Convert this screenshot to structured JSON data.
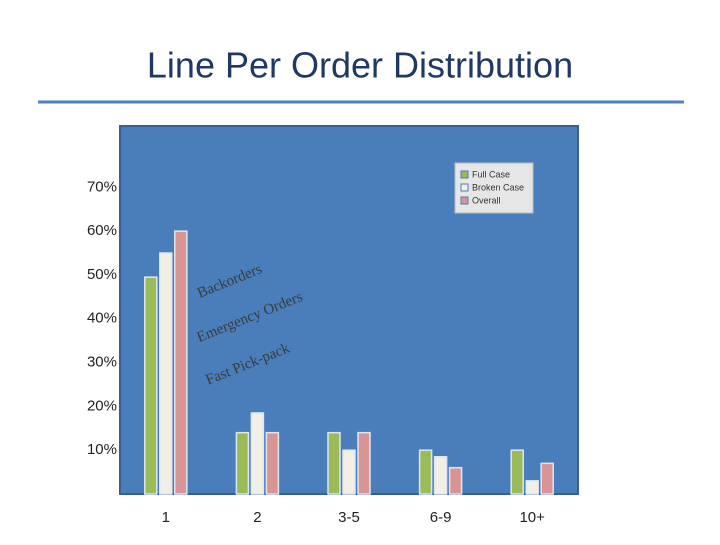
{
  "chart_data": {
    "type": "bar",
    "title": "Line Per Order Distribution",
    "categories": [
      "1",
      "2",
      "3-5",
      "6-9",
      "10+"
    ],
    "series": [
      {
        "name": "Full Case",
        "color": "#9bbb59",
        "values": [
          49.5,
          14,
          14,
          10,
          10
        ]
      },
      {
        "name": "Broken Case",
        "color": "#f2f0e6",
        "values": [
          55,
          18.5,
          10,
          8.5,
          3
        ]
      },
      {
        "name": "Overall",
        "color": "#d99594",
        "values": [
          60,
          14,
          14,
          6,
          7
        ]
      }
    ],
    "ylim": [
      0,
      84
    ],
    "yticks": [
      {
        "value": 10,
        "label": "10%"
      },
      {
        "value": 20,
        "label": "20%"
      },
      {
        "value": 30,
        "label": "30%"
      },
      {
        "value": 40,
        "label": "40%"
      },
      {
        "value": 50,
        "label": "50%"
      },
      {
        "value": 60,
        "label": "60%"
      },
      {
        "value": 70,
        "label": "70%"
      }
    ],
    "grid": false,
    "legend": "top-right",
    "annotations": [
      "Backorders",
      "Emergency Orders",
      "Fast Pick-pack"
    ]
  }
}
